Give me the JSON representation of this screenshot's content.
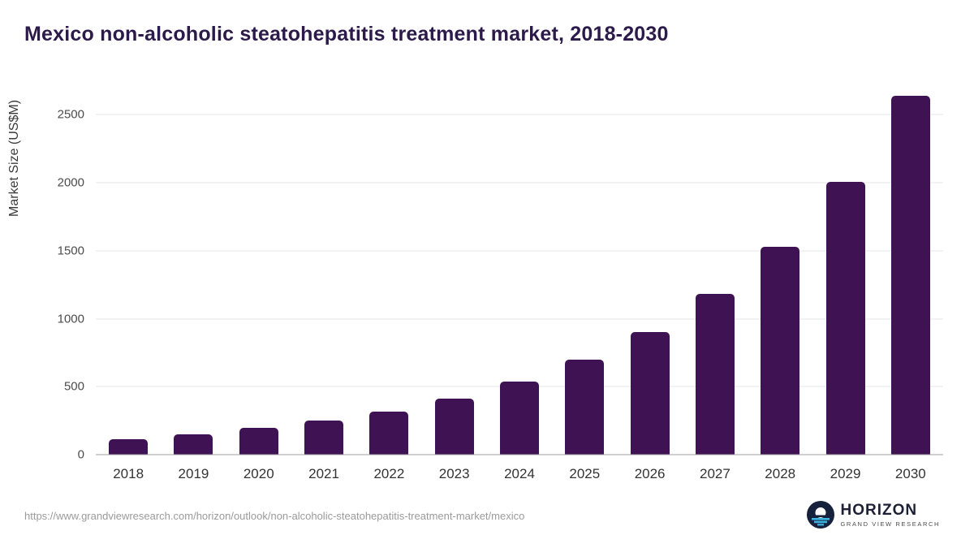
{
  "chart": {
    "title": "Mexico non-alcoholic steatohepatitis treatment market, 2018-2030",
    "ylabel": "Market Size (US$M)"
  },
  "chart_data": {
    "type": "bar",
    "title": "Mexico non-alcoholic steatohepatitis treatment market, 2018-2030",
    "categories": [
      "2018",
      "2019",
      "2020",
      "2021",
      "2022",
      "2023",
      "2024",
      "2025",
      "2026",
      "2027",
      "2028",
      "2029",
      "2030"
    ],
    "values": [
      115,
      150,
      195,
      250,
      315,
      410,
      535,
      700,
      900,
      1180,
      1530,
      2005,
      2640
    ],
    "xlabel": "",
    "ylabel": "Market Size (US$M)",
    "ylim": [
      0,
      2700
    ],
    "yticks": [
      0,
      500,
      1000,
      1500,
      2000,
      2500
    ],
    "grid": true,
    "legend": false,
    "bar_color": "#3f1253"
  },
  "footer": {
    "source_url": "https://www.grandviewresearch.com/horizon/outlook/non-alcoholic-steatohepatitis-treatment-market/mexico",
    "logo": {
      "name": "HORIZON",
      "subtitle": "GRAND VIEW RESEARCH"
    }
  },
  "colors": {
    "bar": "#3f1253",
    "title": "#2b1a4a",
    "logo_navy": "#16213c",
    "logo_cyan": "#3ab5e2"
  }
}
